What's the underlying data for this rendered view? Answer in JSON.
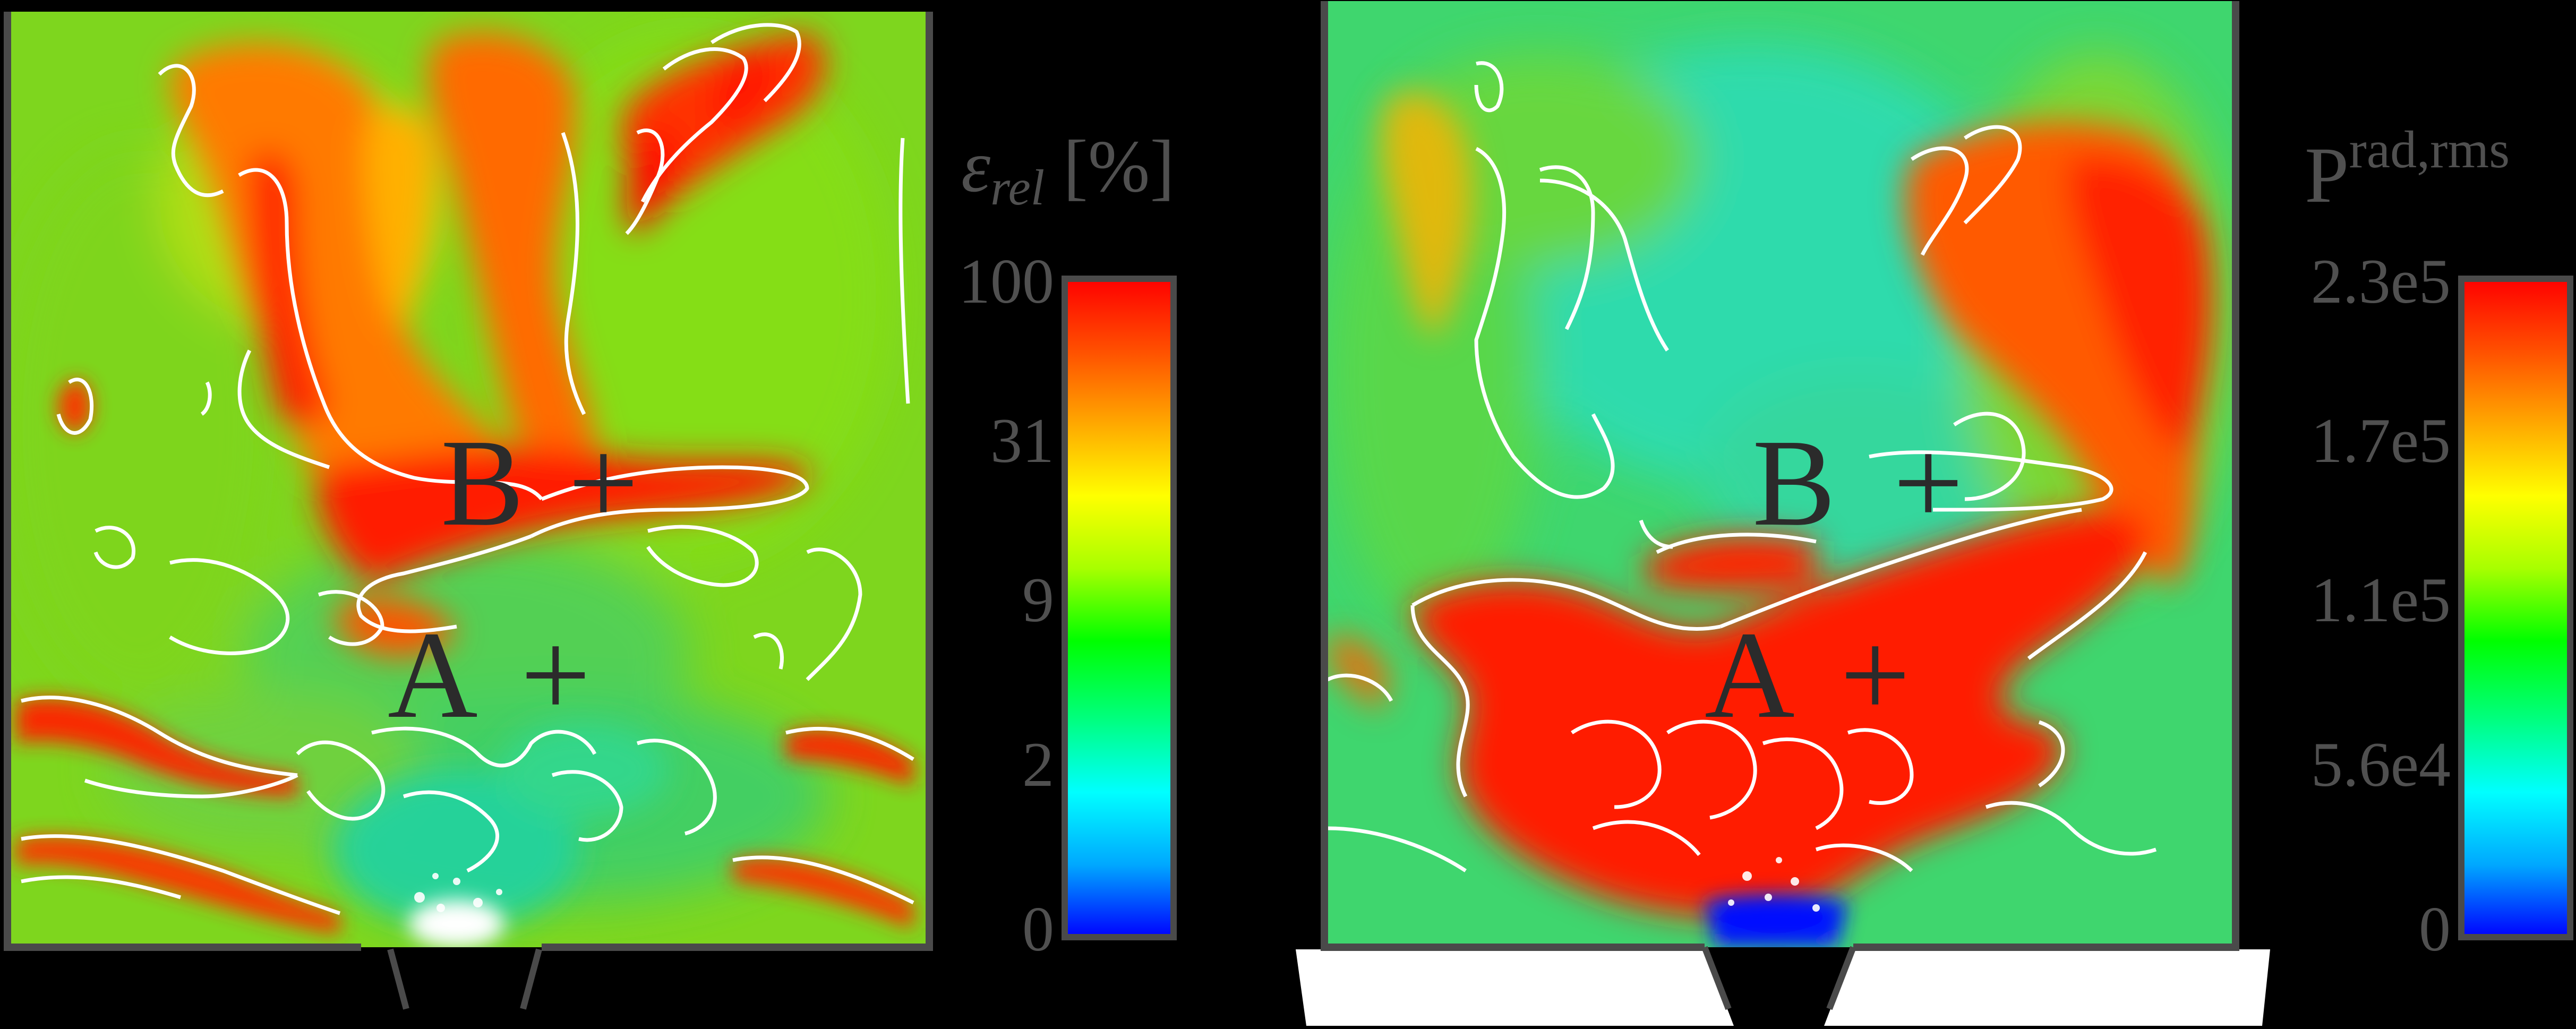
{
  "figure": {
    "left_panel": {
      "quantity": "relative error",
      "colorbar": {
        "title_symbol": "ε",
        "title_subscript": "rel",
        "title_unit": " [%]",
        "ticks": [
          "100",
          "31",
          "9",
          "2",
          "0"
        ],
        "scale": "log-like",
        "colors": [
          "#0000ff",
          "#00a8ff",
          "#00ffff",
          "#00ff80",
          "#00ff00",
          "#a8ff00",
          "#ffff00",
          "#ffa800",
          "#ff5000",
          "#ff0000"
        ]
      },
      "points": [
        {
          "label": "B",
          "marker": "+"
        },
        {
          "label": "A",
          "marker": "+"
        }
      ]
    },
    "right_panel": {
      "quantity": "radiation pressure rms",
      "colorbar": {
        "title_main": "P",
        "title_superscript": "rad,rms",
        "ticks": [
          "2.3e5",
          "1.7e5",
          "1.1e5",
          "5.6e4",
          "0"
        ],
        "colors": [
          "#0000ff",
          "#00a8ff",
          "#00ffff",
          "#00ff80",
          "#00ff00",
          "#a8ff00",
          "#ffff00",
          "#ffa800",
          "#ff5000",
          "#ff0000"
        ]
      },
      "points": [
        {
          "label": "B",
          "marker": "+"
        },
        {
          "label": "A",
          "marker": "+"
        }
      ]
    },
    "colors": {
      "background": "#000000",
      "frame": "#4a4a4a",
      "contour": "#ffffff",
      "label": "#2b2b2b",
      "tick": "#505050"
    }
  }
}
